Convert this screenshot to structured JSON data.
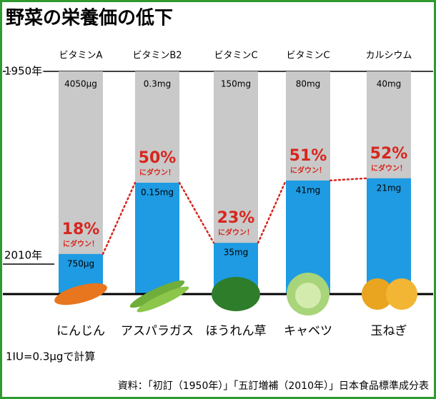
{
  "chart_data": {
    "type": "bar",
    "title": "野菜の栄養価の低下",
    "y_labels": [
      "1950年",
      "2010年"
    ],
    "categories": [
      "にんじん",
      "アスパラガス",
      "ほうれん草",
      "キャベツ",
      "玉ねぎ"
    ],
    "nutrients": [
      "ビタミンA",
      "ビタミンB2",
      "ビタミンC",
      "ビタミンC",
      "カルシウム"
    ],
    "amounts_1950": [
      "4050μg",
      "0.3mg",
      "150mg",
      "80mg",
      "40mg"
    ],
    "amounts_2010": [
      "750μg",
      "0.15mg",
      "35mg",
      "41mg",
      "21mg"
    ],
    "values": [
      18,
      50,
      23,
      51,
      52
    ],
    "value_labels": [
      "18%",
      "50%",
      "23%",
      "51%",
      "52%"
    ],
    "down_label": "にダウン！",
    "color": "#1e9be2",
    "background_color": "#c9c9c9",
    "label_color": "#d7261e",
    "ylim": [
      0,
      100
    ],
    "footnote": "1IU=0.3μgで計算",
    "source": "資料：「初訂（1950年）」「五訂増補（2010年）」日本食品標準成分表"
  }
}
